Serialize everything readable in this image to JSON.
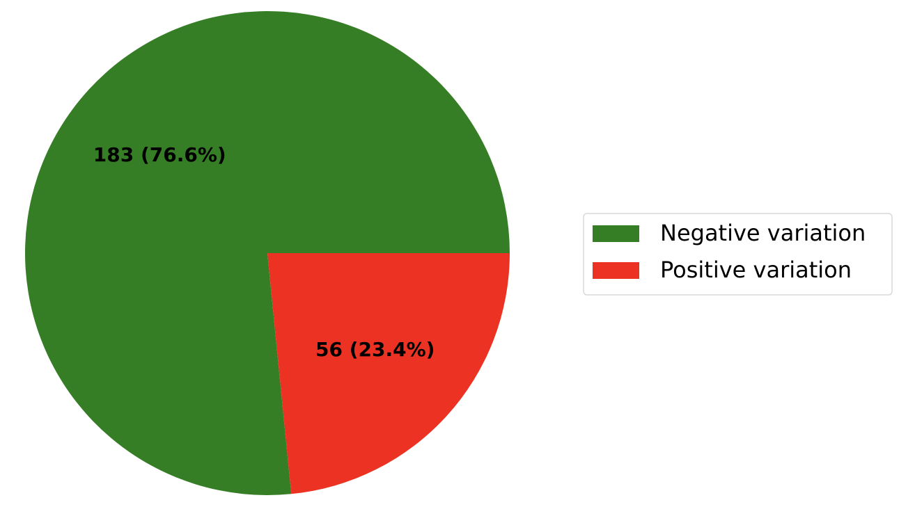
{
  "chart_data": {
    "type": "pie",
    "categories": [
      "Negative variation",
      "Positive variation"
    ],
    "values": [
      183,
      56
    ],
    "value_labels": [
      "183 (76.6%)",
      "56 (23.4%)"
    ],
    "colors": [
      "#367e26",
      "#ec3323"
    ],
    "legend": "right"
  }
}
